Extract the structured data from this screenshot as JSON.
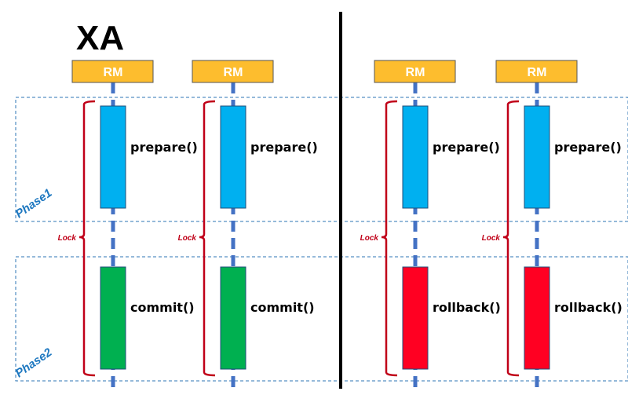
{
  "title": "XA",
  "phases": [
    {
      "label": "Phase1"
    },
    {
      "label": "Phase2"
    }
  ],
  "colors": {
    "rm_box": "#fdbd2e",
    "lifeline": "#4472c4",
    "prepare": "#00b0f0",
    "commit": "#00b050",
    "rollback": "#ff0022",
    "lock_brace": "#c00018",
    "phase_border": "#2e75b6",
    "divider": "#000000"
  },
  "columns": [
    {
      "rm": "RM",
      "lock": "Lock",
      "phase1_op": "prepare()",
      "phase2_op": "commit()",
      "phase2_kind": "commit"
    },
    {
      "rm": "RM",
      "lock": "Lock",
      "phase1_op": "prepare()",
      "phase2_op": "commit()",
      "phase2_kind": "commit"
    },
    {
      "rm": "RM",
      "lock": "Lock",
      "phase1_op": "prepare()",
      "phase2_op": "rollback()",
      "phase2_kind": "rollback"
    },
    {
      "rm": "RM",
      "lock": "Lock",
      "phase1_op": "prepare()",
      "phase2_op": "rollback()",
      "phase2_kind": "rollback"
    }
  ]
}
